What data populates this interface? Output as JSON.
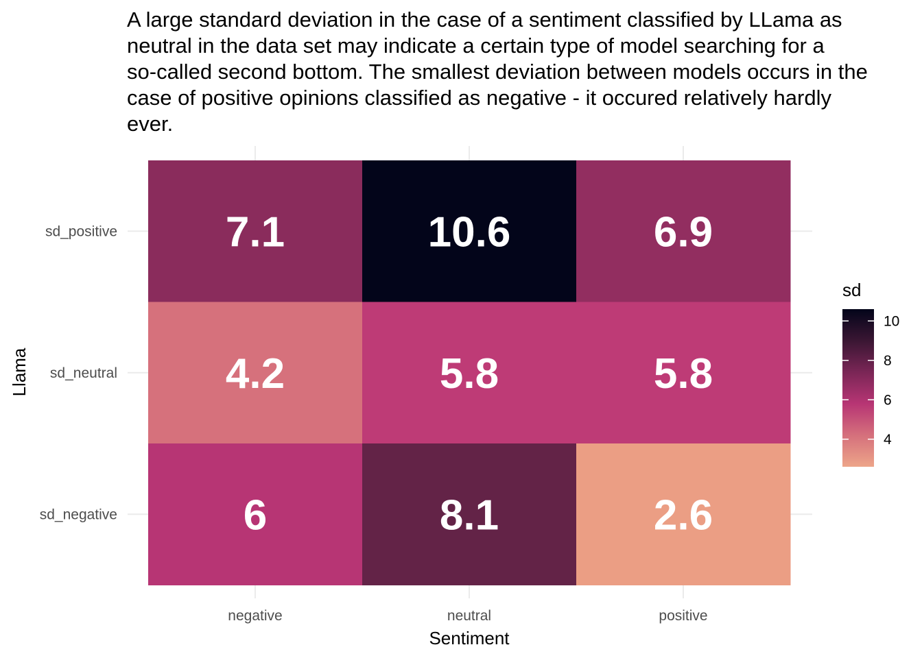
{
  "title_lines": [
    "A large standard deviation in the case of a sentiment classified by LLama as",
    "neutral in the data set may indicate a certain type of model searching for a",
    "so-called second bottom. The smallest deviation between models occurs in the",
    "case of positive opinions classified as negative - it occured relatively hardly",
    "ever."
  ],
  "chart_data": {
    "type": "heatmap",
    "xlabel": "Sentiment",
    "ylabel": "Llama",
    "x_categories": [
      "negative",
      "neutral",
      "positive"
    ],
    "y_categories": [
      "sd_negative",
      "sd_neutral",
      "sd_positive"
    ],
    "cells": [
      {
        "x": "negative",
        "y": "sd_positive",
        "value": 7.1,
        "label": "7.1",
        "color": "#8a2c5c"
      },
      {
        "x": "neutral",
        "y": "sd_positive",
        "value": 10.6,
        "label": "10.6",
        "color": "#03051a"
      },
      {
        "x": "positive",
        "y": "sd_positive",
        "value": 6.9,
        "label": "6.9",
        "color": "#922e60"
      },
      {
        "x": "negative",
        "y": "sd_neutral",
        "value": 4.2,
        "label": "4.2",
        "color": "#d6717c"
      },
      {
        "x": "neutral",
        "y": "sd_neutral",
        "value": 5.8,
        "label": "5.8",
        "color": "#be3b76"
      },
      {
        "x": "positive",
        "y": "sd_neutral",
        "value": 5.8,
        "label": "5.8",
        "color": "#be3b76"
      },
      {
        "x": "negative",
        "y": "sd_negative",
        "value": 6,
        "label": "6",
        "color": "#b73574"
      },
      {
        "x": "neutral",
        "y": "sd_negative",
        "value": 8.1,
        "label": "8.1",
        "color": "#632347"
      },
      {
        "x": "positive",
        "y": "sd_negative",
        "value": 2.6,
        "label": "2.6",
        "color": "#eb9e84"
      }
    ],
    "legend": {
      "title": "sd",
      "placement": "right",
      "min": 2.6,
      "max": 10.6,
      "breaks": [
        4,
        6,
        8,
        10
      ],
      "break_labels": [
        "4",
        "6",
        "8",
        "10"
      ],
      "colormap": [
        "#eda589",
        "#d5707c",
        "#b73574",
        "#7a2656",
        "#3a1633",
        "#03051a"
      ]
    },
    "grid": true
  }
}
